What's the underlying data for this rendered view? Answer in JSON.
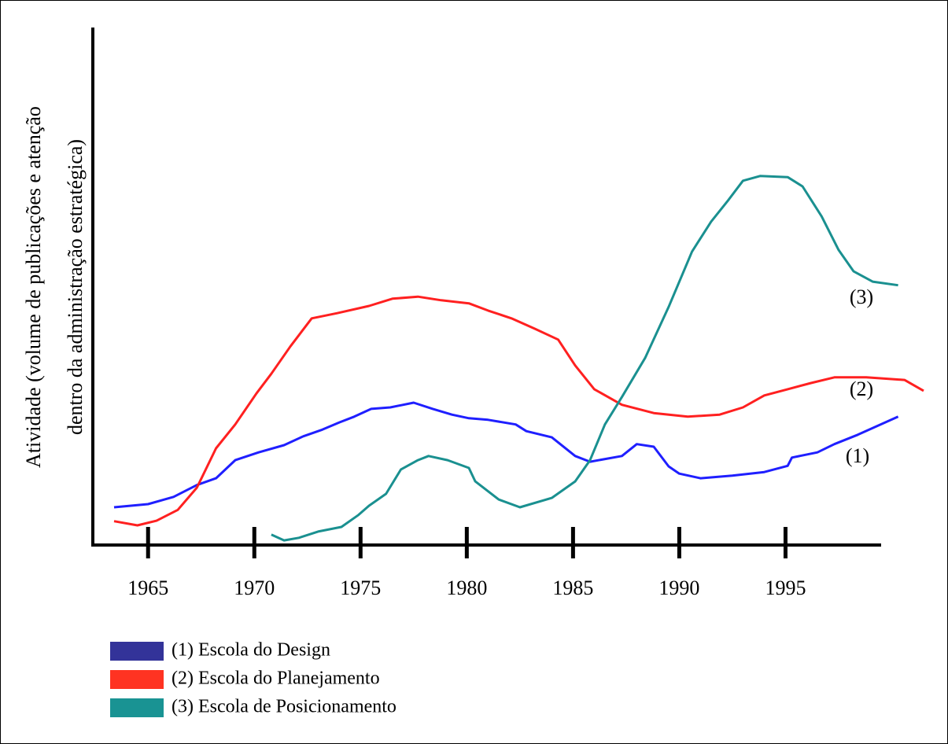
{
  "chart_data": {
    "type": "line",
    "y_label": [
      "Atividade (volume de publicações e atenção",
      "dentro da administração estratégica)"
    ],
    "xlim": [
      1962.4,
      1999.5
    ],
    "ylim": [
      0,
      100
    ],
    "xticks": [
      1965,
      1970,
      1975,
      1980,
      1985,
      1990,
      1995
    ],
    "series": [
      {
        "name": "(1) Escola do Design",
        "color": "#1f1fff",
        "legend_color": "#333399",
        "annotation": "(1)",
        "x": [
          1963.4,
          1965.0,
          1966.2,
          1967.3,
          1968.2,
          1969.1,
          1970.2,
          1971.4,
          1972.3,
          1973.2,
          1974.0,
          1974.7,
          1975.5,
          1976.4,
          1977.5,
          1978.4,
          1979.3,
          1980.1,
          1981.0,
          1982.3,
          1982.8,
          1984.0,
          1985.1,
          1985.8,
          1987.3,
          1988.0,
          1988.8,
          1989.5,
          1990.0,
          1991.0,
          1992.5,
          1994.0,
          1995.1,
          1995.3,
          1996.5,
          1997.3,
          1998.4,
          2000.3
        ],
        "values": [
          7.3,
          7.9,
          9.3,
          11.6,
          12.9,
          16.4,
          17.9,
          19.3,
          21.0,
          22.3,
          23.7,
          24.8,
          26.3,
          26.6,
          27.5,
          26.3,
          25.2,
          24.5,
          24.2,
          23.3,
          22.0,
          20.8,
          17.2,
          16.1,
          17.2,
          19.5,
          19.0,
          15.2,
          13.8,
          12.9,
          13.4,
          14.1,
          15.3,
          16.9,
          17.9,
          19.5,
          21.3,
          24.8
        ]
      },
      {
        "name": "(2) Escola do Planejamento",
        "color": "#ff2020",
        "legend_color": "#ff3322",
        "annotation": "(2)",
        "x": [
          1963.4,
          1964.5,
          1965.4,
          1966.4,
          1967.3,
          1968.2,
          1969.1,
          1970.1,
          1970.8,
          1971.7,
          1972.7,
          1973.9,
          1975.4,
          1976.5,
          1977.7,
          1978.8,
          1980.1,
          1981.0,
          1982.1,
          1983.2,
          1984.3,
          1985.1,
          1986.0,
          1987.3,
          1988.8,
          1990.4,
          1991.9,
          1993.0,
          1994.0,
          1995.1,
          1996.2,
          1997.3,
          1998.8,
          2000.6,
          2001.5
        ],
        "values": [
          4.6,
          3.8,
          4.7,
          6.8,
          11.1,
          18.7,
          23.3,
          29.3,
          33.1,
          38.4,
          43.8,
          44.8,
          46.2,
          47.6,
          48.0,
          47.3,
          46.7,
          45.3,
          43.8,
          41.8,
          39.7,
          34.7,
          30.1,
          27.1,
          25.5,
          24.8,
          25.2,
          26.6,
          28.9,
          30.1,
          31.3,
          32.4,
          32.4,
          31.9,
          29.8
        ]
      },
      {
        "name": "(3) Escola de Posicionamento",
        "color": "#1a9090",
        "legend_color": "#199393",
        "annotation": "(3)",
        "x": [
          1970.8,
          1971.4,
          1972.1,
          1973.0,
          1974.1,
          1974.9,
          1975.4,
          1976.2,
          1976.9,
          1977.7,
          1978.2,
          1979.1,
          1980.1,
          1980.4,
          1981.5,
          1982.5,
          1984.0,
          1985.1,
          1985.8,
          1986.5,
          1987.3,
          1988.4,
          1989.5,
          1990.6,
          1991.5,
          1992.3,
          1993.0,
          1993.8,
          1995.1,
          1995.8,
          1996.7,
          1997.5,
          1998.2,
          1999.1,
          2000.3
        ],
        "values": [
          2.0,
          0.9,
          1.4,
          2.6,
          3.5,
          5.8,
          7.6,
          9.9,
          14.6,
          16.4,
          17.2,
          16.4,
          14.9,
          12.3,
          8.8,
          7.3,
          9.1,
          12.3,
          16.4,
          23.3,
          28.6,
          36.2,
          46.0,
          56.7,
          62.5,
          66.6,
          70.4,
          71.3,
          71.1,
          69.3,
          63.5,
          57.0,
          52.9,
          50.9,
          50.2
        ]
      }
    ]
  }
}
